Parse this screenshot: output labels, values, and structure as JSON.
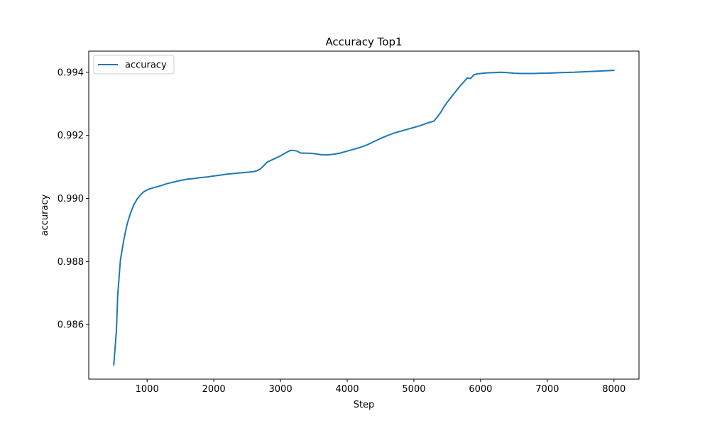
{
  "chart_data": {
    "type": "line",
    "title": "Accuracy Top1",
    "xlabel": "Step",
    "ylabel": "accuracy",
    "xlim": [
      125,
      8375
    ],
    "ylim": [
      0.98427,
      0.99467
    ],
    "x_ticks": [
      1000,
      2000,
      3000,
      4000,
      5000,
      6000,
      7000,
      8000
    ],
    "x_tick_labels": [
      "1000",
      "2000",
      "3000",
      "4000",
      "5000",
      "6000",
      "7000",
      "8000"
    ],
    "y_ticks": [
      0.986,
      0.988,
      0.99,
      0.992,
      0.994
    ],
    "y_tick_labels": [
      "0.986",
      "0.988",
      "0.990",
      "0.992",
      "0.994"
    ],
    "grid": false,
    "legend_position": "top-left",
    "series": [
      {
        "name": "accuracy",
        "color": "#1f77b4",
        "x": [
          500,
          540,
          560,
          600,
          650,
          700,
          750,
          800,
          850,
          900,
          950,
          1000,
          1050,
          1100,
          1200,
          1300,
          1400,
          1500,
          1600,
          1700,
          1800,
          1900,
          2000,
          2100,
          2200,
          2300,
          2400,
          2500,
          2600,
          2650,
          2700,
          2750,
          2800,
          2900,
          3000,
          3050,
          3100,
          3150,
          3200,
          3250,
          3300,
          3450,
          3500,
          3600,
          3650,
          3700,
          3800,
          3900,
          4000,
          4100,
          4200,
          4300,
          4400,
          4500,
          4600,
          4700,
          4800,
          4900,
          5000,
          5100,
          5200,
          5300,
          5350,
          5400,
          5450,
          5500,
          5600,
          5700,
          5800,
          5850,
          5900,
          5950,
          6000,
          6100,
          6200,
          6300,
          6400,
          6500,
          6600,
          6700,
          6800,
          6900,
          7000,
          7200,
          7400,
          7600,
          7800,
          8000
        ],
        "y": [
          0.98472,
          0.9858,
          0.98695,
          0.98805,
          0.98868,
          0.98918,
          0.98953,
          0.9898,
          0.98998,
          0.99011,
          0.99021,
          0.99027,
          0.99031,
          0.99034,
          0.9904,
          0.99047,
          0.99052,
          0.99057,
          0.99061,
          0.99063,
          0.99066,
          0.99068,
          0.99071,
          0.99074,
          0.99077,
          0.99079,
          0.99081,
          0.99083,
          0.99085,
          0.99088,
          0.99094,
          0.99104,
          0.99115,
          0.99125,
          0.99135,
          0.99141,
          0.99147,
          0.99152,
          0.99152,
          0.9915,
          0.99144,
          0.99143,
          0.99142,
          0.99139,
          0.99138,
          0.99138,
          0.9914,
          0.99144,
          0.9915,
          0.99156,
          0.99162,
          0.9917,
          0.9918,
          0.9919,
          0.99199,
          0.99207,
          0.99213,
          0.99219,
          0.99225,
          0.99231,
          0.99239,
          0.99245,
          0.99258,
          0.99272,
          0.9929,
          0.99305,
          0.99332,
          0.99358,
          0.99382,
          0.9938,
          0.99392,
          0.99395,
          0.99396,
          0.99398,
          0.99399,
          0.994,
          0.99399,
          0.99397,
          0.99396,
          0.99396,
          0.99396,
          0.99397,
          0.99397,
          0.99399,
          0.994,
          0.99402,
          0.99404,
          0.99406
        ]
      }
    ]
  }
}
